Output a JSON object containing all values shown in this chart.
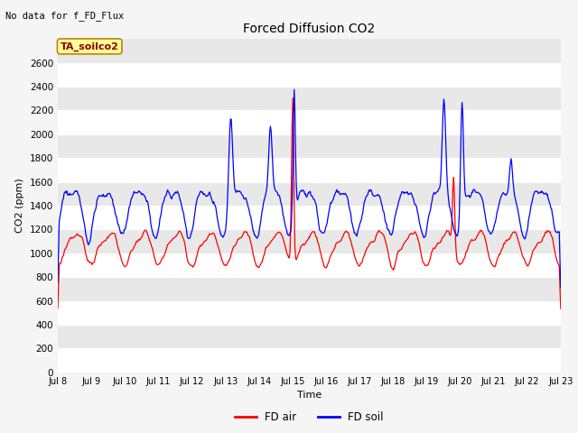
{
  "title": "Forced Diffusion CO2",
  "xlabel": "Time",
  "ylabel": "CO2 (ppm)",
  "ylim": [
    0,
    2800
  ],
  "yticks": [
    0,
    200,
    400,
    600,
    800,
    1000,
    1200,
    1400,
    1600,
    1800,
    2000,
    2200,
    2400,
    2600
  ],
  "xtick_labels": [
    "Jul 8",
    "Jul 9",
    "Jul 10",
    "Jul 11",
    "Jul 12",
    "Jul 13",
    "Jul 14",
    "Jul 15",
    "Jul 16",
    "Jul 17",
    "Jul 18",
    "Jul 19",
    "Jul 20",
    "Jul 21",
    "Jul 22",
    "Jul 23"
  ],
  "top_left_text": "No data for f_FD_Flux",
  "annotation_box_text": "TA_soilco2",
  "legend_entries": [
    "FD air",
    "FD soil"
  ],
  "fd_air_color": "#FF0000",
  "fd_soil_color": "#0000FF",
  "plot_bg_color": "#E8E8E8",
  "grid_color": "#FFFFFF",
  "fig_bg_color": "#F5F5F5",
  "n_days": 15,
  "pts_per_day": 48
}
